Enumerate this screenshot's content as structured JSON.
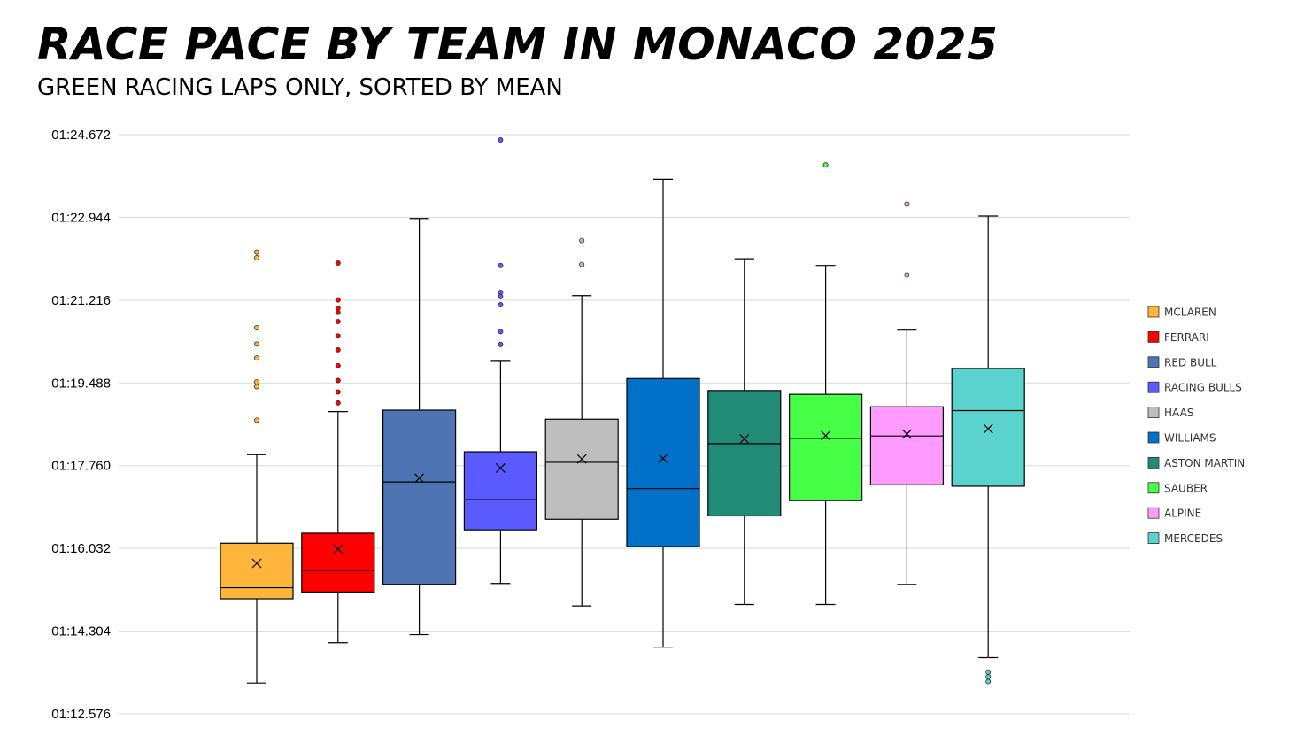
{
  "header": {
    "title": "RACE PACE BY TEAM IN MONACO 2025",
    "subtitle": "GREEN RACING LAPS ONLY, SORTED BY MEAN"
  },
  "chart_data": {
    "type": "box",
    "title": "RACE PACE BY TEAM IN MONACO 2025",
    "subtitle": "GREEN RACING LAPS ONLY, SORTED BY MEAN",
    "xlabel": "",
    "ylabel": "",
    "ylim": [
      72.576,
      84.672
    ],
    "yticks": [
      72.576,
      74.304,
      76.032,
      77.76,
      79.488,
      81.216,
      82.944,
      84.672
    ],
    "ytick_labels": [
      "01:12.576",
      "01:14.304",
      "01:16.032",
      "01:17.760",
      "01:19.488",
      "01:21.216",
      "01:22.944",
      "01:24.672"
    ],
    "grid": true,
    "legend_position": "right",
    "series": [
      {
        "name": "MCLAREN",
        "color": "#FFB43C",
        "whisker_low": 73.22,
        "q1": 74.98,
        "median": 75.21,
        "q3": 76.14,
        "whisker_high": 77.99,
        "mean": 75.72,
        "outliers": [
          78.71,
          79.41,
          79.51,
          80.01,
          80.3,
          80.64,
          82.1,
          82.22
        ]
      },
      {
        "name": "FERRARI",
        "color": "#FF0000",
        "whisker_low": 74.06,
        "q1": 75.12,
        "median": 75.57,
        "q3": 76.35,
        "whisker_high": 78.89,
        "mean": 76.02,
        "outliers": [
          79.07,
          79.3,
          79.54,
          79.85,
          80.18,
          80.47,
          80.77,
          80.96,
          81.05,
          81.22,
          81.99
        ]
      },
      {
        "name": "RED BULL",
        "color": "#4F74B4",
        "whisker_low": 74.23,
        "q1": 75.28,
        "median": 77.42,
        "q3": 78.92,
        "whisker_high": 82.92,
        "mean": 77.5,
        "outliers": []
      },
      {
        "name": "RACING BULLS",
        "color": "#5A5AFF",
        "whisker_low": 75.3,
        "q1": 76.42,
        "median": 77.05,
        "q3": 78.05,
        "whisker_high": 79.94,
        "mean": 77.71,
        "outliers": [
          80.29,
          80.56,
          81.12,
          81.29,
          81.38,
          81.94,
          84.56
        ]
      },
      {
        "name": "HAAS",
        "color": "#BEBEBE",
        "whisker_low": 74.83,
        "q1": 76.64,
        "median": 77.83,
        "q3": 78.73,
        "whisker_high": 81.31,
        "mean": 77.9,
        "outliers": [
          81.96,
          82.46
        ]
      },
      {
        "name": "WILLIAMS",
        "color": "#0070C8",
        "whisker_low": 73.97,
        "q1": 76.07,
        "median": 77.28,
        "q3": 79.58,
        "whisker_high": 83.74,
        "mean": 77.91,
        "outliers": []
      },
      {
        "name": "ASTON MARTIN",
        "color": "#228B78",
        "whisker_low": 74.86,
        "q1": 76.71,
        "median": 78.22,
        "q3": 79.33,
        "whisker_high": 82.08,
        "mean": 78.32,
        "outliers": []
      },
      {
        "name": "SAUBER",
        "color": "#46FF46",
        "whisker_low": 74.86,
        "q1": 77.03,
        "median": 78.33,
        "q3": 79.25,
        "whisker_high": 81.94,
        "mean": 78.39,
        "outliers": [
          84.04
        ]
      },
      {
        "name": "ALPINE",
        "color": "#FF9BFF",
        "whisker_low": 75.28,
        "q1": 77.36,
        "median": 78.38,
        "q3": 78.99,
        "whisker_high": 80.59,
        "mean": 78.42,
        "outliers": [
          81.74,
          83.22
        ]
      },
      {
        "name": "MERCEDES",
        "color": "#5AD2CD",
        "whisker_low": 73.75,
        "q1": 77.33,
        "median": 78.91,
        "q3": 79.79,
        "whisker_high": 82.97,
        "mean": 78.53,
        "outliers": [
          73.45,
          73.35,
          73.25
        ]
      }
    ]
  }
}
